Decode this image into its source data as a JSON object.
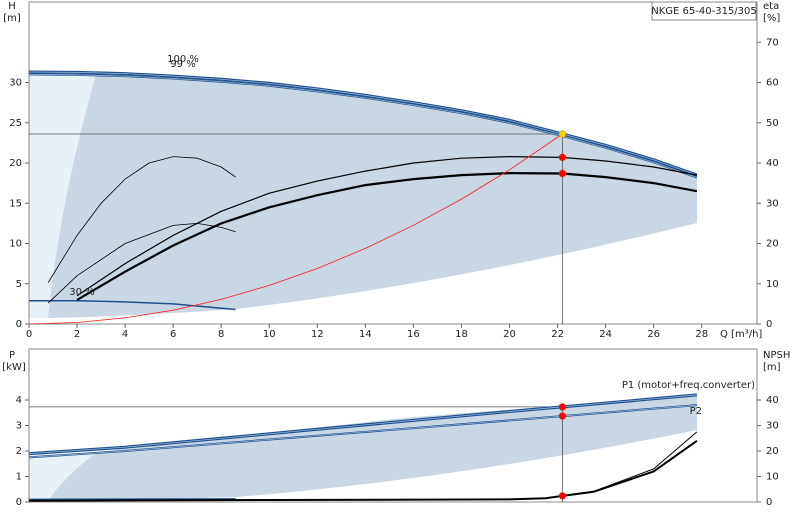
{
  "chart_data": [
    {
      "type": "line",
      "title": "NKGE 65-40-315/305",
      "x_label": "Q [m³/h]",
      "y_label": "H",
      "y_unit": "[m]",
      "y2_label": "eta",
      "y2_unit": "[%]",
      "xlim": [
        0,
        30.3
      ],
      "xticks": [
        0,
        2,
        4,
        6,
        8,
        10,
        12,
        14,
        16,
        18,
        20,
        22,
        24,
        26,
        28
      ],
      "ylim": [
        0,
        40
      ],
      "yticks": [
        0,
        5,
        10,
        15,
        20,
        25,
        30
      ],
      "y2lim": [
        0,
        80
      ],
      "y2ticks": [
        0,
        10,
        20,
        30,
        40,
        50,
        60,
        70
      ],
      "grid": false,
      "annotations": [
        "100 %",
        "99 %",
        "30 %"
      ],
      "series": [
        {
          "color": "#1f4e8c",
          "width": 3,
          "x": [
            0,
            2,
            4,
            6,
            8,
            10,
            12,
            14,
            16,
            18,
            20,
            22.2,
            24,
            26,
            27.8
          ],
          "values": [
            31.3,
            31.25,
            31.1,
            30.8,
            30.4,
            29.9,
            29.2,
            28.4,
            27.5,
            26.5,
            25.3,
            23.6,
            22.2,
            20.4,
            18.5
          ]
        },
        {
          "color": "#1f4e8c",
          "width": 2,
          "x": [
            0,
            2,
            4,
            6,
            8,
            10,
            12,
            14,
            16,
            18,
            20,
            22.2,
            24,
            26,
            27.8
          ],
          "values": [
            31.0,
            30.95,
            30.8,
            30.5,
            30.1,
            29.6,
            28.9,
            28.1,
            27.2,
            26.2,
            25.0,
            23.35,
            21.9,
            20.1,
            18.2
          ]
        },
        {
          "color": "#1f4e8c",
          "width": 1.5,
          "x": [
            0,
            2,
            4,
            6,
            8.6
          ],
          "values": [
            2.9,
            2.88,
            2.75,
            2.5,
            1.8
          ]
        },
        {
          "color": "#000000",
          "width": 1.2,
          "axis": "y2",
          "x": [
            2,
            4,
            6,
            8,
            10,
            12,
            14,
            16,
            18,
            20,
            22.2,
            24,
            26,
            27.8
          ],
          "values": [
            7,
            15,
            22,
            28,
            32.5,
            35.5,
            38,
            40,
            41.2,
            41.6,
            41.4,
            40.5,
            39,
            37
          ]
        },
        {
          "color": "#000000",
          "width": 2.2,
          "axis": "y2",
          "x": [
            2,
            4,
            6,
            8,
            10,
            12,
            14,
            16,
            18,
            20,
            22.2,
            24,
            26,
            27.8
          ],
          "values": [
            6,
            13,
            19.5,
            25,
            29,
            32,
            34.5,
            36,
            37,
            37.5,
            37.4,
            36.5,
            35,
            33
          ]
        },
        {
          "color": "#000000",
          "width": 0.8,
          "axis": "y2",
          "x": [
            0.8,
            2,
            3,
            4,
            5,
            6,
            7,
            8,
            8.6
          ],
          "values": [
            10.3,
            22,
            30,
            36,
            40,
            41.6,
            41.2,
            39,
            36.5
          ]
        },
        {
          "color": "#000000",
          "width": 0.8,
          "axis": "y2",
          "x": [
            0.8,
            2,
            4,
            6,
            7,
            8,
            8.6
          ],
          "values": [
            5.2,
            12,
            20,
            24.5,
            25,
            24,
            22.9
          ]
        },
        {
          "color": "#ff2020",
          "width": 0.8,
          "x": [
            0,
            2,
            4,
            6,
            8,
            10,
            12,
            14,
            16,
            18,
            20,
            22.2
          ],
          "values": [
            0,
            0.19,
            0.77,
            1.72,
            3.06,
            4.79,
            6.9,
            9.39,
            12.26,
            15.52,
            19.15,
            23.6
          ]
        }
      ],
      "markers": [
        {
          "x": 22.2,
          "y": 23.6,
          "color": "#ffcc00"
        },
        {
          "x": 22.2,
          "y": 41.4,
          "axis": "y2",
          "color": "#ff0000"
        },
        {
          "x": 22.2,
          "y": 37.4,
          "axis": "y2",
          "color": "#ff0000"
        }
      ]
    },
    {
      "type": "line",
      "y_label": "P",
      "y_unit": "[kW]",
      "y2_label": "NPSH",
      "y2_unit": "[m]",
      "xlim": [
        0,
        30.3
      ],
      "ylim": [
        0,
        6
      ],
      "yticks": [
        0,
        1,
        2,
        3,
        4
      ],
      "y2lim": [
        0,
        60
      ],
      "y2ticks": [
        0,
        10,
        20,
        30,
        40
      ],
      "grid": false,
      "series": [
        {
          "name": "P1 (motor+freq.converter)",
          "color": "#1f4e8c",
          "width": 3,
          "x": [
            0,
            4,
            8,
            12,
            16,
            20,
            22.2,
            27.8
          ],
          "values": [
            1.9,
            2.15,
            2.5,
            2.85,
            3.2,
            3.55,
            3.73,
            4.2
          ]
        },
        {
          "name": "P2",
          "color": "#1f4e8c",
          "width": 2,
          "x": [
            0,
            4,
            8,
            12,
            16,
            20,
            22.2,
            27.8
          ],
          "values": [
            1.75,
            2.0,
            2.3,
            2.6,
            2.9,
            3.2,
            3.37,
            3.8
          ]
        },
        {
          "color": "#1f4e8c",
          "width": 1.5,
          "x": [
            0,
            8.6
          ],
          "values": [
            0.1,
            0.12
          ]
        },
        {
          "color": "#000000",
          "width": 2,
          "axis": "y2",
          "x": [
            0,
            10,
            20,
            21.5,
            22.2,
            23.5,
            26,
            27.8
          ],
          "values": [
            0.5,
            0.8,
            1.0,
            1.5,
            2.4,
            4,
            12,
            24
          ]
        },
        {
          "color": "#000000",
          "width": 1,
          "axis": "y2",
          "x": [
            22.2,
            23.5,
            26,
            27.8
          ],
          "values": [
            2.4,
            4.2,
            13,
            27.5
          ]
        }
      ],
      "markers": [
        {
          "x": 22.2,
          "y": 3.73,
          "color": "#ff0000"
        },
        {
          "x": 22.2,
          "y": 3.37,
          "color": "#ff0000"
        },
        {
          "x": 22.2,
          "y": 2.4,
          "axis": "y2",
          "color": "#ff0000"
        }
      ]
    }
  ]
}
